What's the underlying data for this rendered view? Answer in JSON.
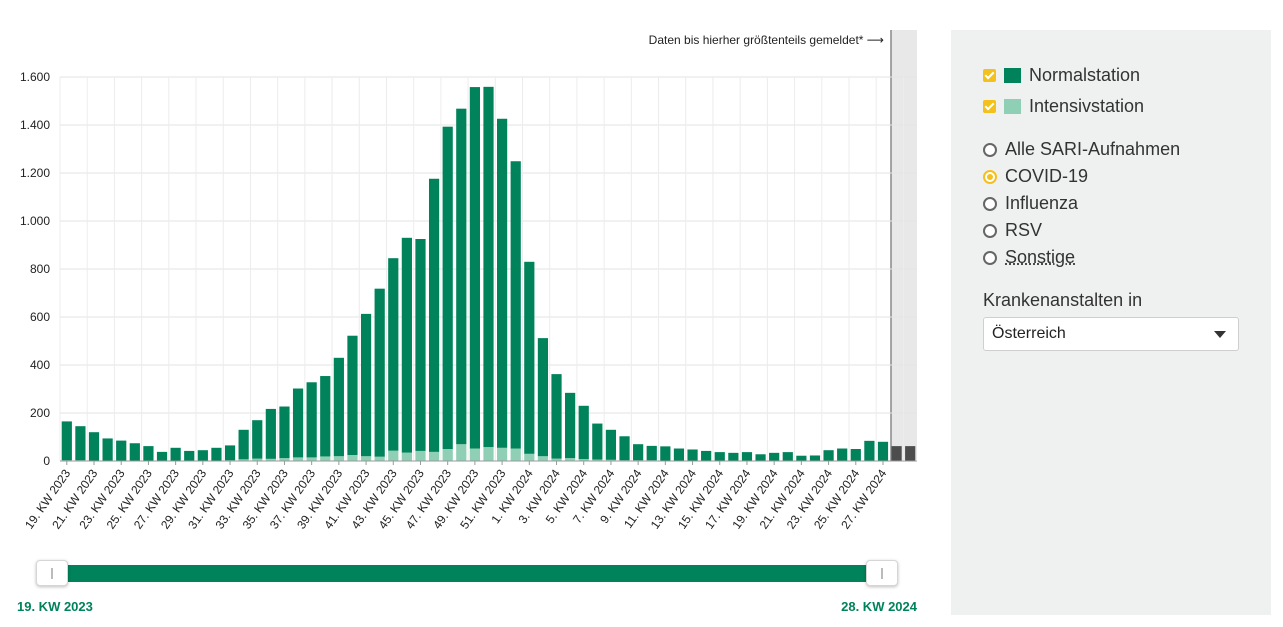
{
  "note": "Daten bis hierher größtenteils gemeldet* ⟶",
  "range": {
    "start": "19. KW 2023",
    "end": "28. KW 2024"
  },
  "legend": {
    "normal": {
      "label": "Normalstation",
      "color": "#00825a",
      "checked": true
    },
    "intensive": {
      "label": "Intensivstation",
      "color": "#8ecfb5",
      "checked": true
    }
  },
  "filters": {
    "options": [
      {
        "label": "Alle SARI-Aufnahmen",
        "selected": false
      },
      {
        "label": "COVID-19",
        "selected": true
      },
      {
        "label": "Influenza",
        "selected": false
      },
      {
        "label": "RSV",
        "selected": false
      },
      {
        "label": "Sonstige",
        "selected": false
      }
    ]
  },
  "region": {
    "label": "Krankenanstalten in",
    "value": "Österreich"
  },
  "icons": {
    "checkbox": "checkbox-checked-icon",
    "radio": "radio-icon",
    "dropdown": "chevron-down-icon"
  },
  "chart_data": {
    "type": "bar",
    "stacked": true,
    "ylim": [
      0,
      1600
    ],
    "yticks": [
      0,
      200,
      400,
      600,
      800,
      1000,
      1200,
      1400,
      1600
    ],
    "ytick_labels": [
      "0",
      "200",
      "400",
      "600",
      "800",
      "1.000",
      "1.200",
      "1.400",
      "1.600"
    ],
    "grid": true,
    "xtick_labels": [
      "19. KW 2023",
      "21. KW 2023",
      "23. KW 2023",
      "25. KW 2023",
      "27. KW 2023",
      "29. KW 2023",
      "31. KW 2023",
      "33. KW 2023",
      "35. KW 2023",
      "37. KW 2023",
      "39. KW 2023",
      "41. KW 2023",
      "43. KW 2023",
      "45. KW 2023",
      "47. KW 2023",
      "49. KW 2023",
      "51. KW 2023",
      "1. KW 2024",
      "3. KW 2024",
      "5. KW 2024",
      "7. KW 2024",
      "9. KW 2024",
      "11. KW 2024",
      "13. KW 2024",
      "15. KW 2024",
      "17. KW 2024",
      "19. KW 2024",
      "21. KW 2024",
      "23. KW 2024",
      "25. KW 2024",
      "27. KW 2024"
    ],
    "series": [
      {
        "name": "Intensivstation",
        "color": "#8ecfb5",
        "values": [
          3,
          3,
          2,
          2,
          2,
          2,
          2,
          1,
          2,
          2,
          2,
          2,
          3,
          7,
          10,
          9,
          12,
          15,
          15,
          19,
          20,
          25,
          20,
          18,
          43,
          35,
          42,
          38,
          50,
          70,
          52,
          58,
          55,
          52,
          30,
          20,
          10,
          12,
          8,
          6,
          5,
          3,
          3,
          3,
          2,
          2,
          2,
          2,
          1,
          1,
          1,
          1,
          1,
          1,
          1,
          1,
          1,
          2,
          2,
          2,
          2,
          2,
          2
        ]
      },
      {
        "name": "Normalstation",
        "color": "#00825a",
        "values": [
          162,
          142,
          118,
          92,
          83,
          72,
          60,
          37,
          53,
          40,
          43,
          53,
          62,
          123,
          160,
          208,
          215,
          287,
          313,
          335,
          410,
          497,
          593,
          700,
          802,
          895,
          883,
          1138,
          1343,
          1398,
          1506,
          1501,
          1371,
          1197,
          800,
          492,
          352,
          272,
          222,
          150,
          125,
          100,
          67,
          60,
          59,
          50,
          46,
          40,
          36,
          33,
          36,
          27,
          33,
          36,
          21,
          22,
          44,
          50,
          48,
          82,
          78,
          60,
          60
        ]
      }
    ],
    "gray_from_index": 61,
    "gray_color": "#4d4d4d"
  }
}
